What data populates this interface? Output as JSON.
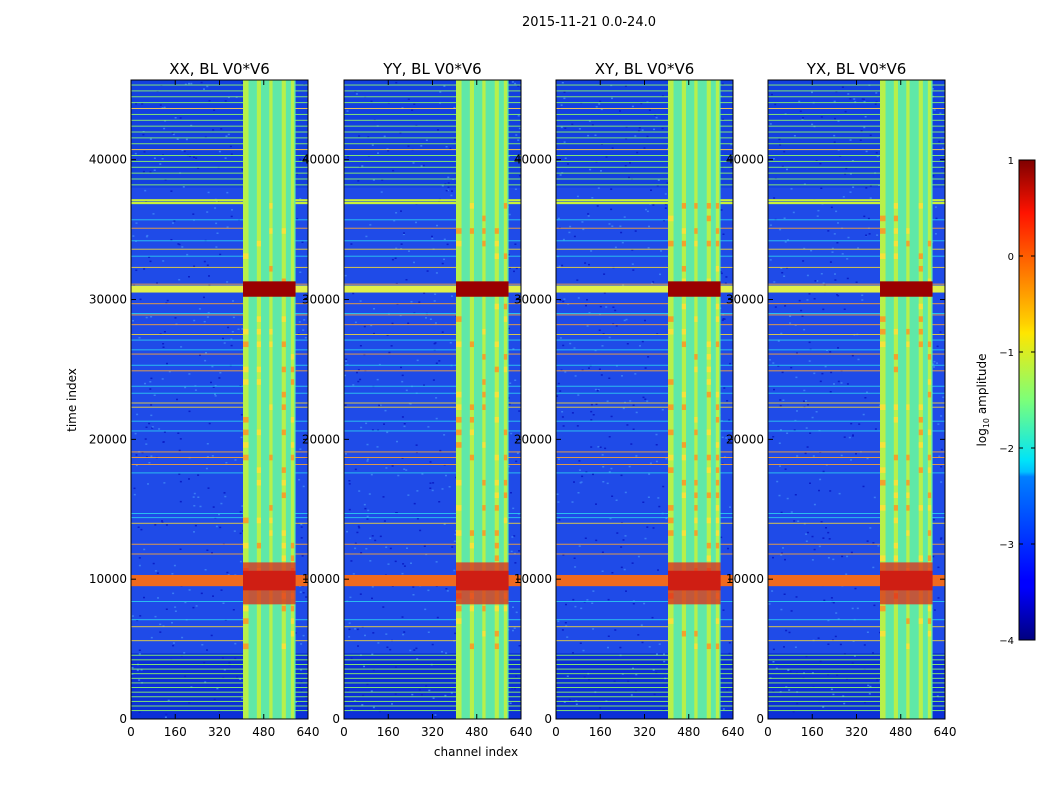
{
  "figure": {
    "title": "2015-11-21 0.0-24.0"
  },
  "chart_data": {
    "type": "heatmap",
    "xlabel": "channel index",
    "ylabel": "time index",
    "xlim": [
      0,
      640
    ],
    "ylim": [
      0,
      45700
    ],
    "xticks": [
      0,
      160,
      320,
      480,
      640
    ],
    "yticks": [
      0,
      10000,
      20000,
      30000,
      40000
    ],
    "colorbar": {
      "label": "log10 amplitude",
      "label_base": "log",
      "label_sub": "10",
      "label_rest": " amplitude",
      "min": -4,
      "max": 1,
      "ticks": [
        "1",
        "0",
        "−1",
        "−2",
        "−3",
        "−4"
      ],
      "colormap": "jet"
    },
    "panels": [
      {
        "title": "XX, BL V0*V6",
        "polarization": "XX",
        "baseline": "V0*V6"
      },
      {
        "title": "YY, BL V0*V6",
        "polarization": "YY",
        "baseline": "V0*V6"
      },
      {
        "title": "XY, BL V0*V6",
        "polarization": "XY",
        "baseline": "V0*V6"
      },
      {
        "title": "YX, BL V0*V6",
        "polarization": "YX",
        "baseline": "V0*V6"
      }
    ],
    "rfi_channel_band": [
      405,
      595
    ],
    "bright_time_bands": [
      [
        9500,
        10300
      ],
      [
        30500,
        31000
      ]
    ],
    "flagged_time_ranges": [
      [
        0,
        4700
      ],
      [
        36800,
        37200
      ],
      [
        38000,
        45700
      ]
    ]
  }
}
